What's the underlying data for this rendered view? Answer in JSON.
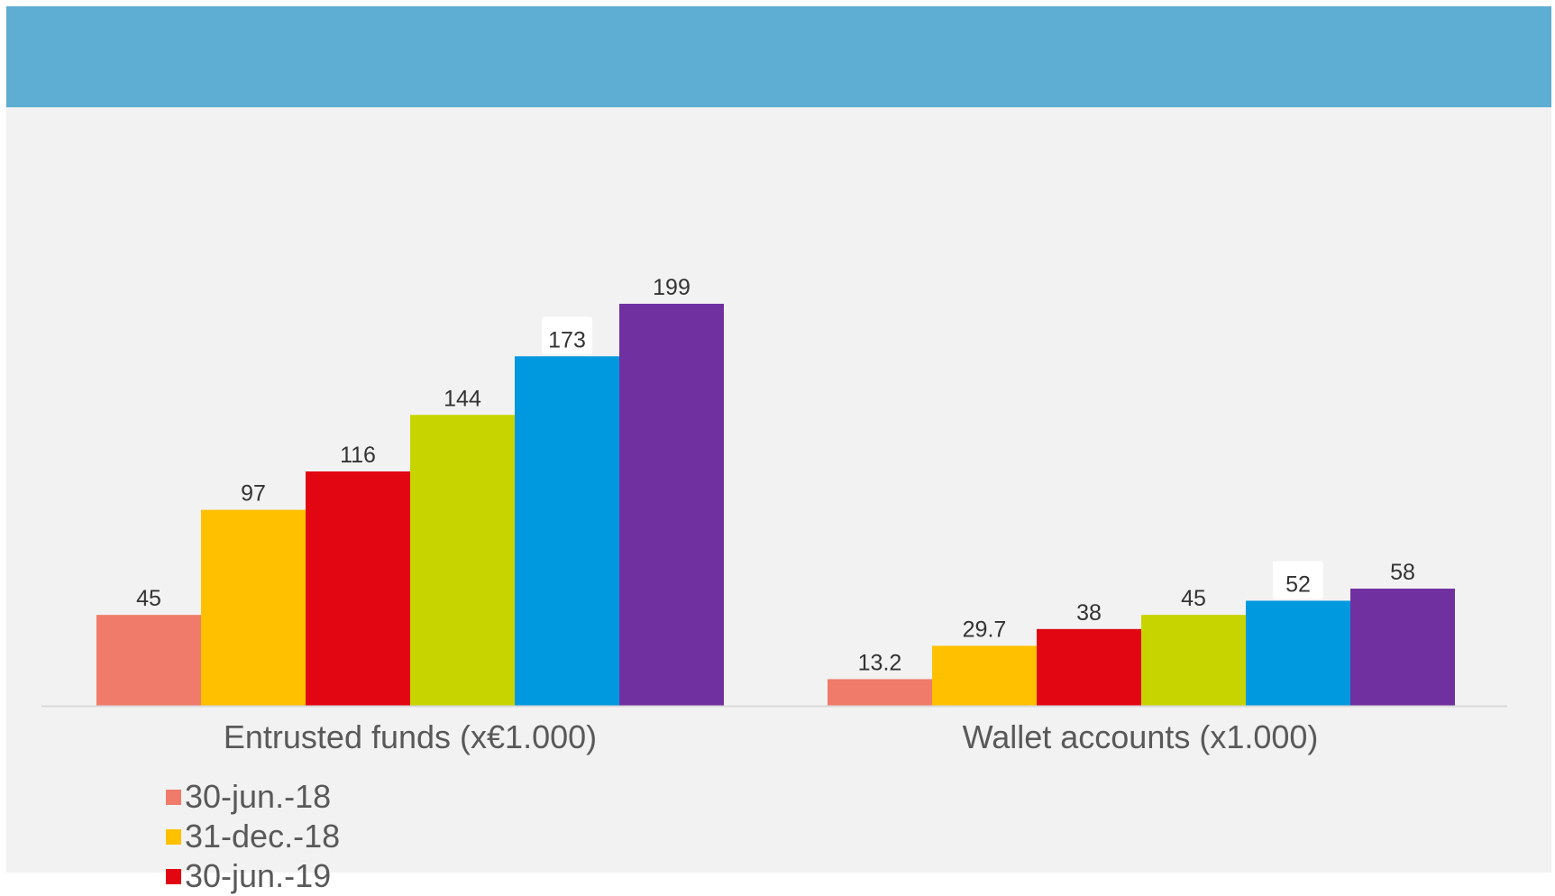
{
  "colors": {
    "banner": "#5eadd3",
    "panel_background": "#f2f2f2",
    "axis_line": "#d9d9d9",
    "label_text": "#595959",
    "value_text": "#333333"
  },
  "chart_data": {
    "type": "bar",
    "categories": [
      "Entrusted funds (x€1.000)",
      "Wallet accounts (x1.000)"
    ],
    "series": [
      {
        "name": "30-jun.-18",
        "color": "#f07b6b",
        "values": [
          45,
          13.2
        ]
      },
      {
        "name": "31-dec.-18",
        "color": "#ffc000",
        "values": [
          97,
          29.7
        ]
      },
      {
        "name": "30-jun.-19",
        "color": "#e20613",
        "values": [
          116,
          38
        ]
      },
      {
        "color": "#c8d400",
        "values": [
          144,
          45
        ]
      },
      {
        "color": "#0098de",
        "values": [
          173,
          52
        ]
      },
      {
        "color": "#7030a0",
        "values": [
          199,
          58
        ]
      }
    ],
    "value_labels": [
      [
        "45",
        "13.2"
      ],
      [
        "97",
        "29.7"
      ],
      [
        "116",
        "38"
      ],
      [
        "144",
        "45"
      ],
      [
        "173",
        "52"
      ],
      [
        "199",
        "58"
      ]
    ],
    "ylim": [
      0,
      199
    ],
    "grid": false,
    "legend_position": "bottom-left"
  }
}
